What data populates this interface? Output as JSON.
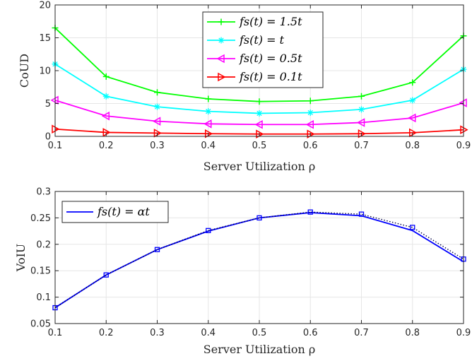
{
  "chart_data": [
    {
      "type": "line",
      "xlabel": "Server Utilization ρ",
      "ylabel": "CoUD",
      "xlim": [
        0.1,
        0.9
      ],
      "ylim": [
        0,
        20
      ],
      "xticks": [
        "0.1",
        "0.2",
        "0.3",
        "0.4",
        "0.5",
        "0.6",
        "0.7",
        "0.8",
        "0.9"
      ],
      "yticks": [
        "0",
        "5",
        "10",
        "15",
        "20"
      ],
      "grid": true,
      "legend_position": "top-center",
      "x": [
        0.1,
        0.2,
        0.3,
        0.4,
        0.5,
        0.6,
        0.7,
        0.8,
        0.9
      ],
      "series": [
        {
          "name": "fs(t) = 1.5t",
          "color": "#00ff00",
          "marker": "plus",
          "values": [
            16.5,
            9.1,
            6.7,
            5.7,
            5.3,
            5.4,
            6.1,
            8.2,
            15.3
          ]
        },
        {
          "name": "fs(t) = t",
          "color": "#00ffff",
          "marker": "star",
          "values": [
            11.0,
            6.1,
            4.5,
            3.8,
            3.5,
            3.6,
            4.1,
            5.5,
            10.2
          ]
        },
        {
          "name": "fs(t) = 0.5t",
          "color": "#ff00ff",
          "marker": "triangle-left",
          "values": [
            5.5,
            3.1,
            2.3,
            1.9,
            1.8,
            1.8,
            2.1,
            2.8,
            5.1
          ]
        },
        {
          "name": "fs(t) = 0.1t",
          "color": "#ff0000",
          "marker": "triangle-right",
          "values": [
            1.1,
            0.6,
            0.5,
            0.4,
            0.35,
            0.35,
            0.4,
            0.55,
            1.0
          ]
        }
      ]
    },
    {
      "type": "line",
      "xlabel": "Server Utilization ρ",
      "ylabel": "VoIU",
      "xlim": [
        0.1,
        0.9
      ],
      "ylim": [
        0.05,
        0.3
      ],
      "xticks": [
        "0.1",
        "0.2",
        "0.3",
        "0.4",
        "0.5",
        "0.6",
        "0.7",
        "0.8",
        "0.9"
      ],
      "yticks": [
        "0.05",
        "0.1",
        "0.15",
        "0.2",
        "0.25",
        "0.3"
      ],
      "grid": true,
      "legend_position": "top-left",
      "x": [
        0.1,
        0.2,
        0.3,
        0.4,
        0.5,
        0.6,
        0.7,
        0.8,
        0.9
      ],
      "series": [
        {
          "name": "fs(t) = αt",
          "color": "#0000ff",
          "style": "solid",
          "values": [
            0.08,
            0.142,
            0.19,
            0.225,
            0.25,
            0.26,
            0.254,
            0.226,
            0.167
          ]
        },
        {
          "name": "",
          "color": "#0000ff",
          "style": "dotted",
          "marker": "square",
          "values": [
            0.08,
            0.142,
            0.19,
            0.226,
            0.25,
            0.261,
            0.257,
            0.232,
            0.172
          ]
        }
      ]
    }
  ]
}
